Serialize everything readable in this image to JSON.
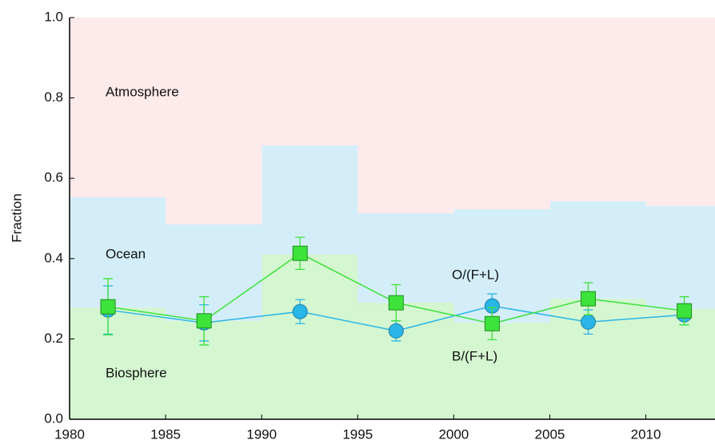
{
  "chart_data": {
    "type": "area",
    "ylabel": "Fraction",
    "xlim": [
      1980,
      2013.6
    ],
    "ylim": [
      0,
      1
    ],
    "xticks": [
      1980,
      1985,
      1990,
      1995,
      2000,
      2005,
      2010
    ],
    "yticks": [
      {
        "value": 0,
        "label": "0.0"
      },
      0.2,
      0.4,
      0.6,
      0.8,
      {
        "value": 1,
        "label": "1.0"
      }
    ],
    "bins": [
      1980,
      1985,
      1990,
      1995,
      2000,
      2005,
      2010,
      2013.6
    ],
    "area_series": [
      {
        "name": "Biosphere",
        "color": "#d4f6d0",
        "values": [
          0.278,
          0.245,
          0.41,
          0.29,
          0.24,
          0.3,
          0.275
        ]
      },
      {
        "name": "Ocean",
        "color": "#d4eef9",
        "values": [
          0.275,
          0.24,
          0.272,
          0.223,
          0.283,
          0.243,
          0.256
        ]
      },
      {
        "name": "Atmosphere",
        "color": "#fdeaea",
        "values": [
          0.447,
          0.515,
          0.318,
          0.487,
          0.477,
          0.457,
          0.469
        ]
      }
    ],
    "series": [
      {
        "marker": "circle",
        "color": "#2ab6e6",
        "edge": "#1d7fa6",
        "x": [
          1982,
          1987,
          1992,
          1997,
          2002,
          2007,
          2012
        ],
        "values": [
          0.272,
          0.24,
          0.268,
          0.22,
          0.282,
          0.242,
          0.26
        ],
        "errors": [
          0.06,
          0.045,
          0.03,
          0.025,
          0.03,
          0.03,
          0.025
        ]
      },
      {
        "marker": "square",
        "color": "#3de23a",
        "edge": "#1f8f1f",
        "x": [
          1982,
          1987,
          1992,
          1997,
          2002,
          2007,
          2012
        ],
        "values": [
          0.28,
          0.245,
          0.413,
          0.29,
          0.238,
          0.3,
          0.27
        ],
        "errors": [
          0.07,
          0.06,
          0.04,
          0.045,
          0.04,
          0.04,
          0.035
        ]
      }
    ],
    "annotations": [
      "O/(F+L)",
      "B/(F+L)"
    ]
  }
}
